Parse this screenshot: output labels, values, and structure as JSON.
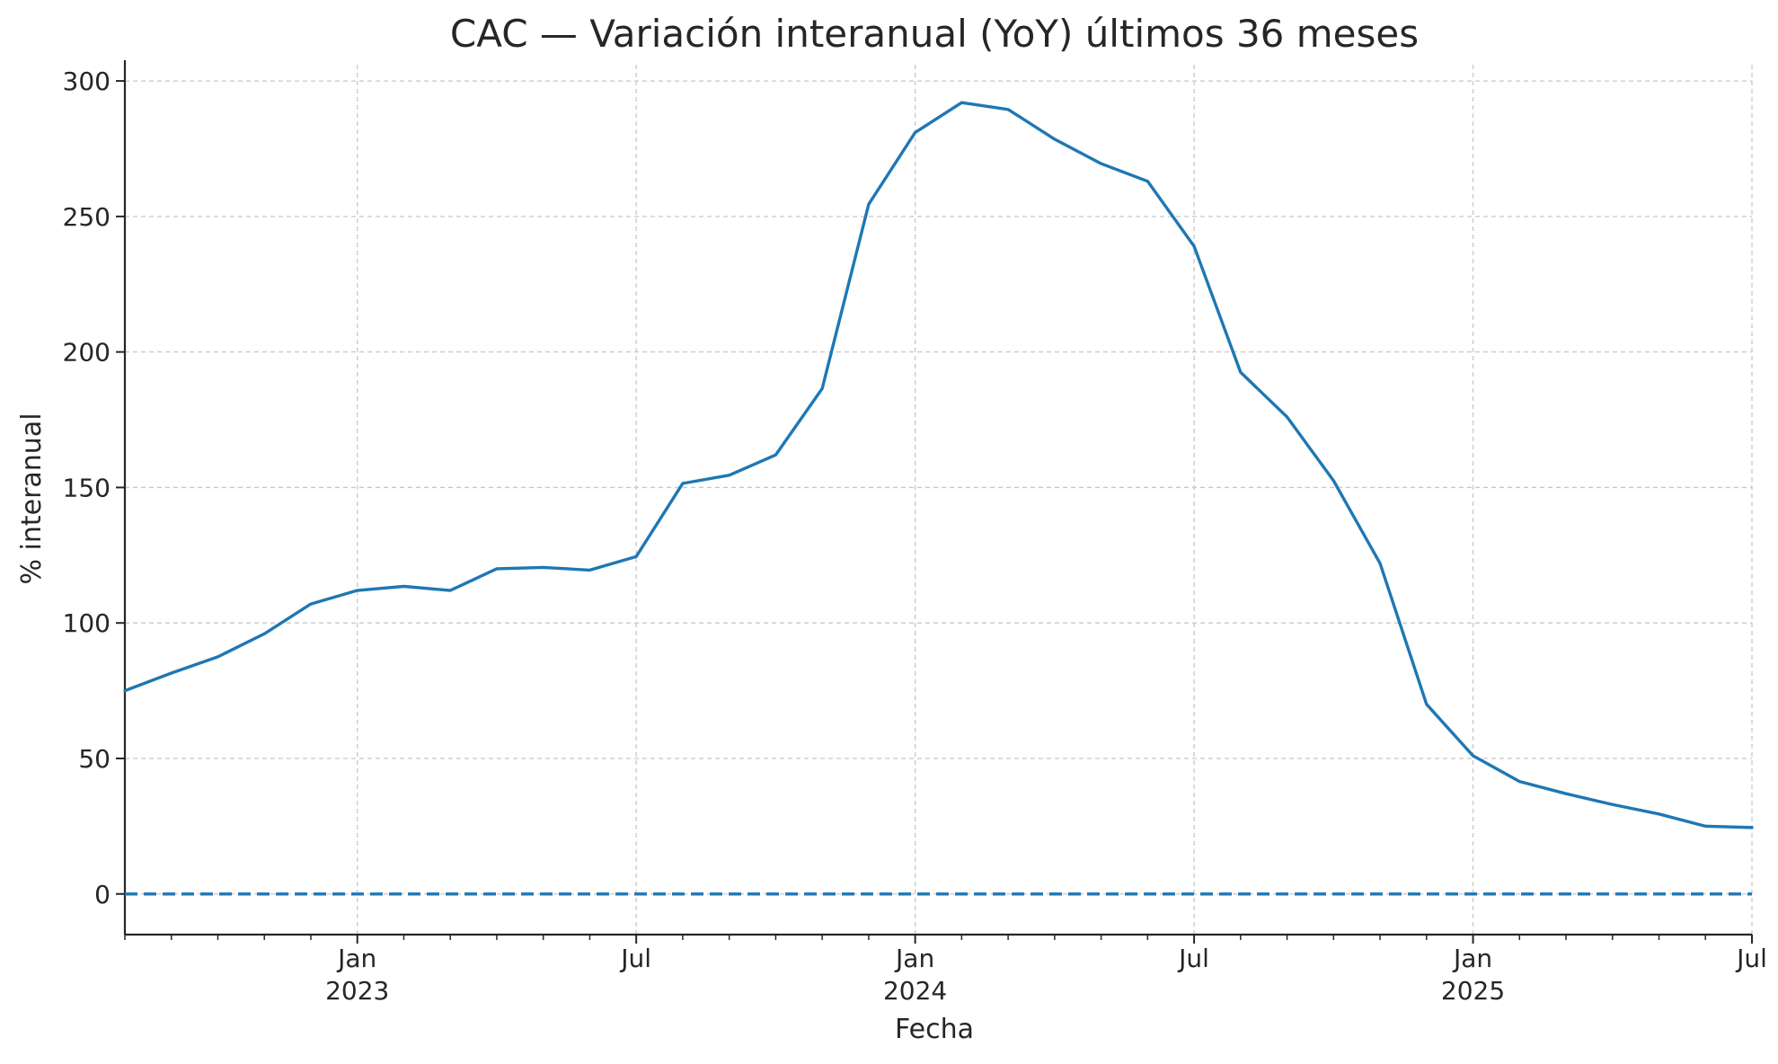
{
  "chart_data": {
    "type": "line",
    "title": "CAC — Variación interanual (YoY) últimos 36 meses",
    "xlabel": "Fecha",
    "ylabel": "% interanual",
    "ylim": [
      -15,
      306
    ],
    "xlim": [
      "2022-08",
      "2025-07"
    ],
    "grid": true,
    "legend": "none",
    "colors": {
      "series": "#1f77b4",
      "grid": "#c8c8c8",
      "axis": "#262626",
      "zero_line": "#1f77b4"
    },
    "yticks": [
      0,
      50,
      100,
      150,
      200,
      250,
      300
    ],
    "xticks": [
      {
        "x": "2023-01",
        "label": "Jan",
        "sublabel": "2023"
      },
      {
        "x": "2023-07",
        "label": "Jul",
        "sublabel": ""
      },
      {
        "x": "2024-01",
        "label": "Jan",
        "sublabel": "2024"
      },
      {
        "x": "2024-07",
        "label": "Jul",
        "sublabel": ""
      },
      {
        "x": "2025-01",
        "label": "Jan",
        "sublabel": "2025"
      },
      {
        "x": "2025-07",
        "label": "Jul",
        "sublabel": ""
      }
    ],
    "reference_line": {
      "y": 0,
      "style": "dashed"
    },
    "x": [
      "2022-08",
      "2022-09",
      "2022-10",
      "2022-11",
      "2022-12",
      "2023-01",
      "2023-02",
      "2023-03",
      "2023-04",
      "2023-05",
      "2023-06",
      "2023-07",
      "2023-08",
      "2023-09",
      "2023-10",
      "2023-11",
      "2023-12",
      "2024-01",
      "2024-02",
      "2024-03",
      "2024-04",
      "2024-05",
      "2024-06",
      "2024-07",
      "2024-08",
      "2024-09",
      "2024-10",
      "2024-11",
      "2024-12",
      "2025-01",
      "2025-02",
      "2025-03",
      "2025-04",
      "2025-05",
      "2025-06",
      "2025-07"
    ],
    "series": [
      {
        "values": [
          75,
          81.5,
          87.5,
          96,
          107,
          112,
          113.5,
          112,
          120,
          120.5,
          119.5,
          124.5,
          151.5,
          154.5,
          162,
          186.5,
          254.5,
          281,
          292,
          289.5,
          278.5,
          269.5,
          263,
          239,
          192.5,
          176,
          152.5,
          122,
          70,
          51,
          41.5,
          37,
          33,
          29.5,
          25,
          24.5
        ]
      }
    ]
  }
}
